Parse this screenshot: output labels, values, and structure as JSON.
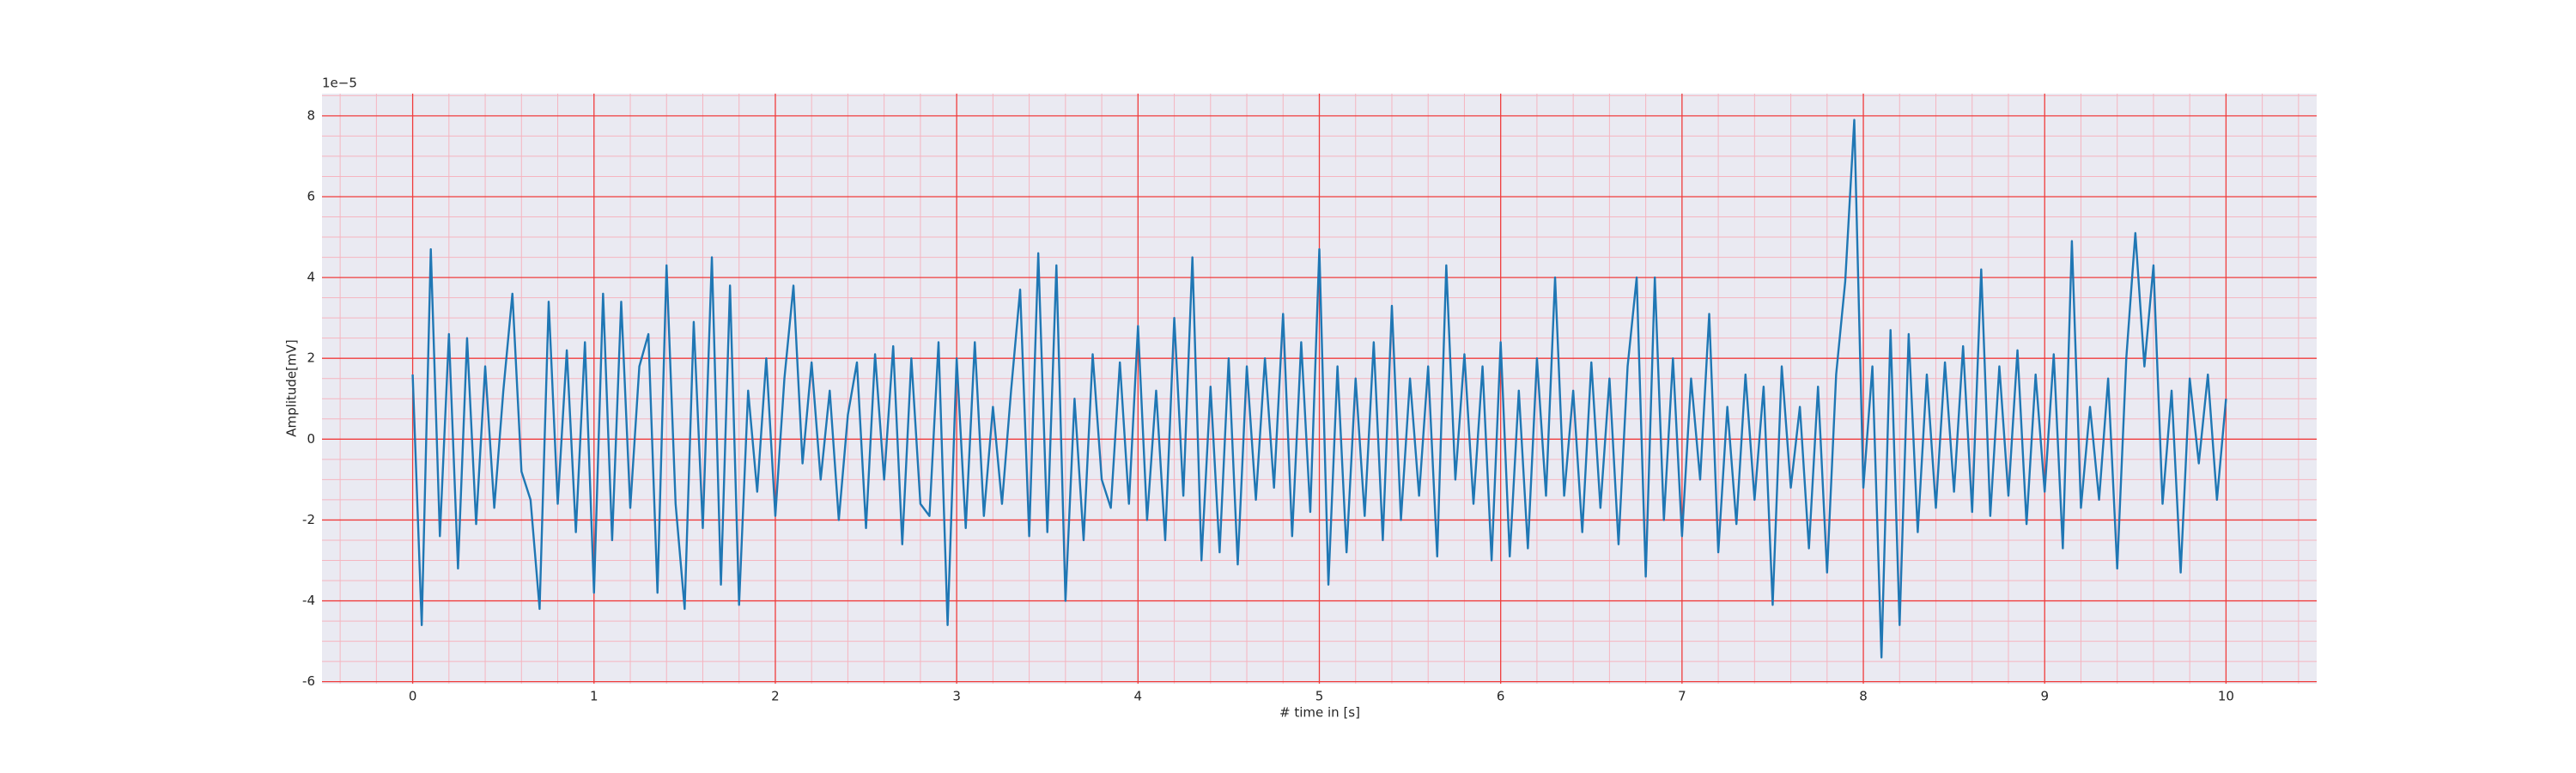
{
  "chart_data": {
    "type": "line",
    "xlabel": "# time in [s]",
    "ylabel": "Amplitude[mV]",
    "y_offset_label": "1e−5",
    "x": [
      0,
      0.05,
      0.1,
      0.15,
      0.2,
      0.25,
      0.3,
      0.35,
      0.4,
      0.45,
      0.5,
      0.55,
      0.6,
      0.65,
      0.7,
      0.75,
      0.8,
      0.85,
      0.9,
      0.95,
      1,
      1.05,
      1.1,
      1.15,
      1.2,
      1.25,
      1.3,
      1.35,
      1.4,
      1.45,
      1.5,
      1.55,
      1.6,
      1.65,
      1.7,
      1.75,
      1.8,
      1.85,
      1.9,
      1.95,
      2,
      2.05,
      2.1,
      2.15,
      2.2,
      2.25,
      2.3,
      2.35,
      2.4,
      2.45,
      2.5,
      2.55,
      2.6,
      2.65,
      2.7,
      2.75,
      2.8,
      2.85,
      2.9,
      2.95,
      3,
      3.05,
      3.1,
      3.15,
      3.2,
      3.25,
      3.3,
      3.35,
      3.4,
      3.45,
      3.5,
      3.55,
      3.6,
      3.65,
      3.7,
      3.75,
      3.8,
      3.85,
      3.9,
      3.95,
      4,
      4.05,
      4.1,
      4.15,
      4.2,
      4.25,
      4.3,
      4.35,
      4.4,
      4.45,
      4.5,
      4.55,
      4.6,
      4.65,
      4.7,
      4.75,
      4.8,
      4.85,
      4.9,
      4.95,
      5,
      5.05,
      5.1,
      5.15,
      5.2,
      5.25,
      5.3,
      5.35,
      5.4,
      5.45,
      5.5,
      5.55,
      5.6,
      5.65,
      5.7,
      5.75,
      5.8,
      5.85,
      5.9,
      5.95,
      6,
      6.05,
      6.1,
      6.15,
      6.2,
      6.25,
      6.3,
      6.35,
      6.4,
      6.45,
      6.5,
      6.55,
      6.6,
      6.65,
      6.7,
      6.75,
      6.8,
      6.85,
      6.9,
      6.95,
      7,
      7.05,
      7.1,
      7.15,
      7.2,
      7.25,
      7.3,
      7.35,
      7.4,
      7.45,
      7.5,
      7.55,
      7.6,
      7.65,
      7.7,
      7.75,
      7.8,
      7.85,
      7.9,
      7.95,
      8,
      8.05,
      8.1,
      8.15,
      8.2,
      8.25,
      8.3,
      8.35,
      8.4,
      8.45,
      8.5,
      8.55,
      8.6,
      8.65,
      8.7,
      8.75,
      8.8,
      8.85,
      8.9,
      8.95,
      9,
      9.05,
      9.1,
      9.15,
      9.2,
      9.25,
      9.3,
      9.35,
      9.4,
      9.45,
      9.5,
      9.55,
      9.6,
      9.65,
      9.7,
      9.75,
      9.8,
      9.85,
      9.9,
      9.95,
      10
    ],
    "series": [
      {
        "color": "#1f77b4",
        "values": [
          1.6,
          -4.6,
          4.7,
          -2.4,
          2.6,
          -3.2,
          2.5,
          -2.1,
          1.8,
          -1.7,
          1.2,
          3.6,
          -0.8,
          -1.5,
          -4.2,
          3.4,
          -1.6,
          2.2,
          -2.3,
          2.4,
          -3.8,
          3.6,
          -2.5,
          3.4,
          -1.7,
          1.8,
          2.6,
          -3.8,
          4.3,
          -1.6,
          -4.2,
          2.9,
          -2.2,
          4.5,
          -3.6,
          3.8,
          -4.1,
          1.2,
          -1.3,
          2.0,
          -1.9,
          1.5,
          3.8,
          -0.6,
          1.9,
          -1.0,
          1.2,
          -2.0,
          0.6,
          1.9,
          -2.2,
          2.1,
          -1.0,
          2.3,
          -2.6,
          2.0,
          -1.6,
          -1.9,
          2.4,
          -4.6,
          2.0,
          -2.2,
          2.4,
          -1.9,
          0.8,
          -1.6,
          1.2,
          3.7,
          -2.4,
          4.6,
          -2.3,
          4.3,
          -4.0,
          1.0,
          -2.5,
          2.1,
          -1.0,
          -1.7,
          1.9,
          -1.6,
          2.8,
          -2.0,
          1.2,
          -2.5,
          3.0,
          -1.4,
          4.5,
          -3.0,
          1.3,
          -2.8,
          2.0,
          -3.1,
          1.8,
          -1.5,
          2.0,
          -1.2,
          3.1,
          -2.4,
          2.4,
          -1.8,
          4.7,
          -3.6,
          1.8,
          -2.8,
          1.5,
          -1.9,
          2.4,
          -2.5,
          3.3,
          -2.0,
          1.5,
          -1.4,
          1.8,
          -2.9,
          4.3,
          -1.0,
          2.1,
          -1.6,
          1.8,
          -3.0,
          2.4,
          -2.9,
          1.2,
          -2.7,
          2.0,
          -1.4,
          4.0,
          -1.4,
          1.2,
          -2.3,
          1.9,
          -1.7,
          1.5,
          -2.6,
          1.8,
          4.0,
          -3.4,
          4.0,
          -2.0,
          2.0,
          -2.4,
          1.5,
          -1.0,
          3.1,
          -2.8,
          0.8,
          -2.1,
          1.6,
          -1.5,
          1.3,
          -4.1,
          1.8,
          -1.2,
          0.8,
          -2.7,
          1.3,
          -3.3,
          1.6,
          3.9,
          7.9,
          -1.2,
          1.8,
          -5.4,
          2.7,
          -4.6,
          2.6,
          -2.3,
          1.6,
          -1.7,
          1.9,
          -1.3,
          2.3,
          -1.8,
          4.2,
          -1.9,
          1.8,
          -1.4,
          2.2,
          -2.1,
          1.6,
          -1.3,
          2.1,
          -2.7,
          4.9,
          -1.7,
          0.8,
          -1.5,
          1.5,
          -3.2,
          2.0,
          5.1,
          1.8,
          4.3,
          -1.6,
          1.2,
          -3.3,
          1.5,
          -0.6,
          1.6,
          -1.5,
          1.0
        ]
      }
    ],
    "xlim": [
      -0.5,
      10.5
    ],
    "ylim": [
      -6.05,
      8.55
    ],
    "xticks": [
      0,
      1,
      2,
      3,
      4,
      5,
      6,
      7,
      8,
      9,
      10
    ],
    "yticks": [
      -6,
      -4,
      -2,
      0,
      2,
      4,
      6,
      8
    ],
    "minor_xticks": [
      -0.4,
      -0.2,
      0.2,
      0.4,
      0.6,
      0.8,
      1.2,
      1.4,
      1.6,
      1.8,
      2.2,
      2.4,
      2.6,
      2.8,
      3.2,
      3.4,
      3.6,
      3.8,
      4.2,
      4.4,
      4.6,
      4.8,
      5.2,
      5.4,
      5.6,
      5.8,
      6.2,
      6.4,
      6.6,
      6.8,
      7.2,
      7.4,
      7.6,
      7.8,
      8.2,
      8.4,
      8.6,
      8.8,
      9.2,
      9.4,
      9.6,
      9.8,
      10.2,
      10.4
    ],
    "minor_yticks": [
      -5.5,
      -5,
      -4.5,
      -3.5,
      -3,
      -2.5,
      -1.5,
      -1,
      -0.5,
      0.5,
      1,
      1.5,
      2.5,
      3,
      3.5,
      4.5,
      5,
      5.5,
      6.5,
      7,
      7.5,
      8.5
    ],
    "grid": true,
    "grid_color": "#f03c3c",
    "minor_grid_color": "#f5b5c0",
    "background": "#eaeaf2"
  }
}
